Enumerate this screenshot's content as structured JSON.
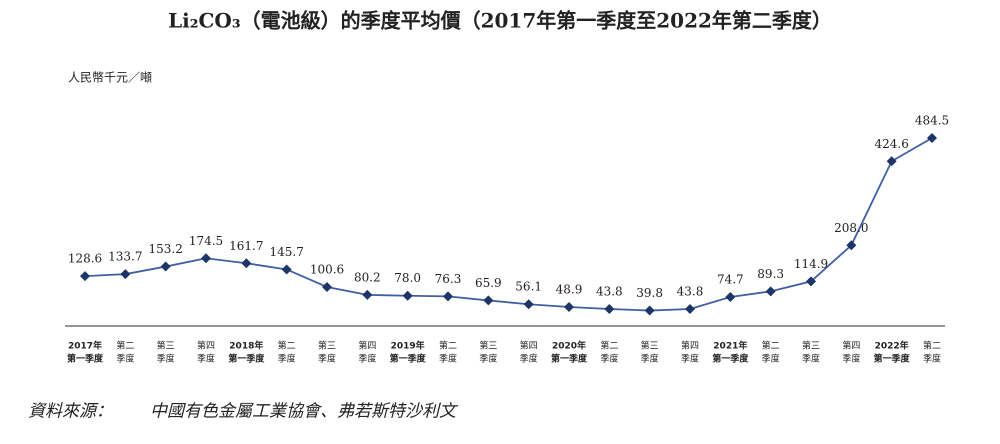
{
  "chart_data": {
    "type": "line",
    "title": "Li₂CO₃（電池級）的季度平均價（2017年第一季度至2022年第二季度）",
    "y_label": "人民幣千元／噸",
    "source_label": "資料來源：",
    "source": "中國有色金屬工業協會、弗若斯特沙利文",
    "categories": [
      [
        "2017年",
        "第一季度"
      ],
      [
        "第二",
        "季度"
      ],
      [
        "第三",
        "季度"
      ],
      [
        "第四",
        "季度"
      ],
      [
        "2018年",
        "第一季度"
      ],
      [
        "第二",
        "季度"
      ],
      [
        "第三",
        "季度"
      ],
      [
        "第四",
        "季度"
      ],
      [
        "2019年",
        "第一季度"
      ],
      [
        "第二",
        "季度"
      ],
      [
        "第三",
        "季度"
      ],
      [
        "第四",
        "季度"
      ],
      [
        "2020年",
        "第一季度"
      ],
      [
        "第二",
        "季度"
      ],
      [
        "第三",
        "季度"
      ],
      [
        "第四",
        "季度"
      ],
      [
        "2021年",
        "第一季度"
      ],
      [
        "第二",
        "季度"
      ],
      [
        "第三",
        "季度"
      ],
      [
        "第四",
        "季度"
      ],
      [
        "2022年",
        "第一季度"
      ],
      [
        "第二",
        "季度"
      ]
    ],
    "values": [
      128.6,
      133.7,
      153.2,
      174.5,
      161.7,
      145.7,
      100.6,
      80.2,
      78.0,
      76.3,
      65.9,
      56.1,
      48.9,
      43.8,
      39.8,
      43.8,
      74.7,
      89.3,
      114.9,
      208.0,
      424.6,
      484.5
    ],
    "value_labels": [
      "128.6",
      "133.7",
      "153.2",
      "174.5",
      "161.7",
      "145.7",
      "100.6",
      "80.2",
      "78.0",
      "76.3",
      "65.9",
      "56.1",
      "48.9",
      "43.8",
      "39.8",
      "43.8",
      "74.7",
      "89.3",
      "114.9",
      "208.0",
      "424.6",
      "484.5"
    ],
    "color": "#3f5fa3",
    "marker_color": "#1e3568",
    "ylim": [
      0,
      500
    ]
  }
}
